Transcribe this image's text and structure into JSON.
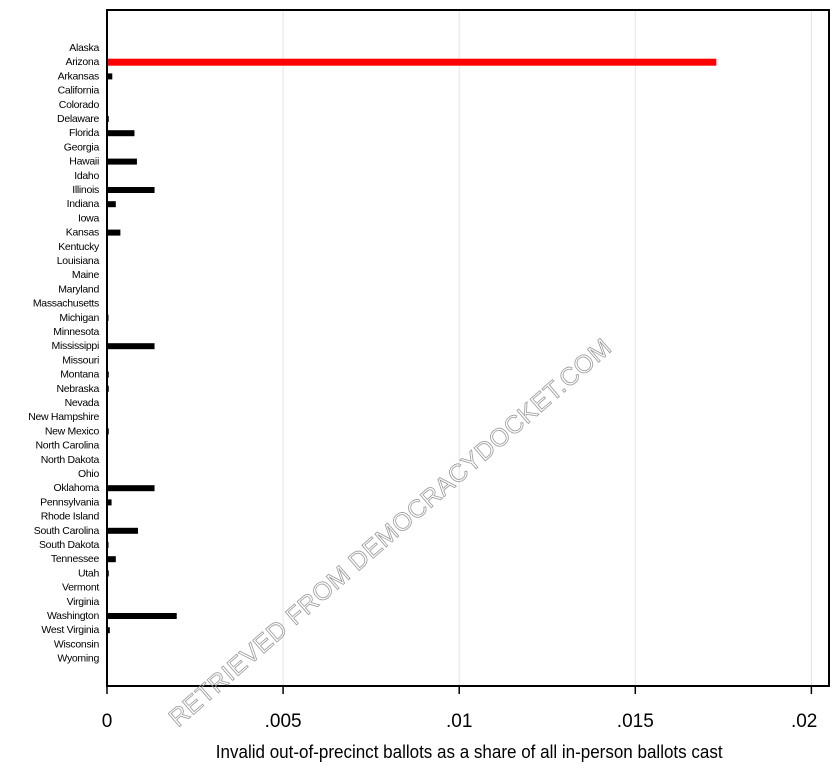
{
  "chart_data": {
    "type": "bar",
    "orientation": "horizontal",
    "categories": [
      "Alaska",
      "Arizona",
      "Arkansas",
      "California",
      "Colorado",
      "Delaware",
      "Florida",
      "Georgia",
      "Hawaii",
      "Idaho",
      "Illinois",
      "Indiana",
      "Iowa",
      "Kansas",
      "Kentucky",
      "Louisiana",
      "Maine",
      "Maryland",
      "Massachusetts",
      "Michigan",
      "Minnesota",
      "Mississippi",
      "Missouri",
      "Montana",
      "Nebraska",
      "Nevada",
      "New Hampshire",
      "New Mexico",
      "North Carolina",
      "North Dakota",
      "Ohio",
      "Oklahoma",
      "Pennsylvania",
      "Rhode Island",
      "South Carolina",
      "South Dakota",
      "Tennessee",
      "Utah",
      "Vermont",
      "Virginia",
      "Washington",
      "West Virginia",
      "Wisconsin",
      "Wyoming"
    ],
    "values": [
      0,
      0.0173,
      0.00015,
      0,
      0,
      5e-05,
      0.00078,
      0,
      0.00085,
      0,
      0.00135,
      0.00025,
      0,
      0.00038,
      0,
      0,
      0,
      0,
      0,
      3e-05,
      0,
      0.00135,
      0,
      5e-05,
      5e-05,
      0,
      0,
      5e-05,
      0,
      0,
      0,
      0.00135,
      0.00013,
      0,
      0.00088,
      3e-05,
      0.00025,
      5e-05,
      0,
      0,
      0.00198,
      8e-05,
      0,
      0
    ],
    "highlight": "Arizona",
    "highlight_color": "#ff0000",
    "bar_color": "#000000",
    "xlabel": "Invalid out-of-precinct ballots as a share of all in-person ballots cast",
    "xticks": [
      0,
      0.005,
      0.01,
      0.015,
      0.02
    ],
    "xtick_labels": [
      "0",
      ".005",
      ".01",
      ".015",
      ".02"
    ],
    "xlim": [
      0,
      0.0205
    ],
    "grid": "vertical"
  },
  "watermark": "RETRIEVED FROM DEMOCRACYDOCKET.COM"
}
